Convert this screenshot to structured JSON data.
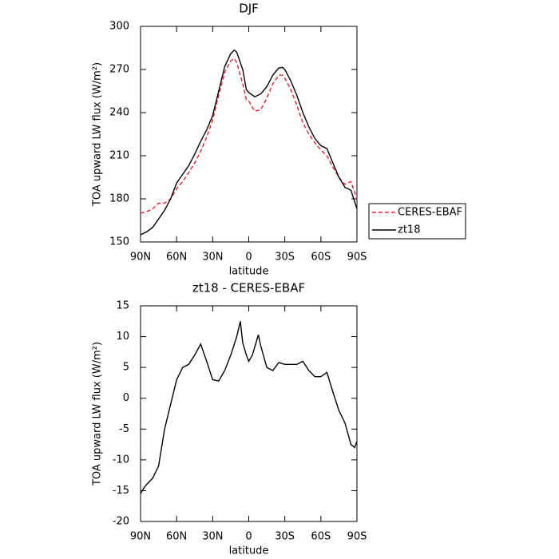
{
  "chart_data": [
    {
      "type": "line",
      "title": "DJF",
      "xlabel": "latitude",
      "ylabel": "TOA upward LW flux (W/m²)",
      "x": [
        90,
        85,
        80,
        75,
        70,
        65,
        60,
        55,
        50,
        45,
        40,
        35,
        30,
        25,
        20,
        15,
        12,
        10,
        5,
        2,
        0,
        -5,
        -10,
        -15,
        -20,
        -25,
        -28,
        -30,
        -35,
        -40,
        -45,
        -50,
        -55,
        -60,
        -65,
        -70,
        -75,
        -80,
        -85,
        -90
      ],
      "series": [
        {
          "name": "CERES-EBAF",
          "color": "#e8202a",
          "dash": true,
          "values": [
            170,
            171,
            173,
            177,
            177,
            180,
            187,
            192,
            198,
            205,
            213,
            223,
            235,
            252,
            268,
            276,
            277.5,
            275,
            260,
            249,
            248,
            241,
            242,
            250,
            260,
            266,
            266,
            264,
            256,
            245,
            233,
            225,
            219,
            214,
            210,
            202,
            195,
            190,
            192,
            180
          ]
        },
        {
          "name": "zt18",
          "color": "#000000",
          "dash": false,
          "values": [
            155,
            157,
            160,
            166,
            172,
            180,
            191,
            197,
            203,
            211,
            220,
            228,
            238,
            255,
            272,
            281,
            283.5,
            282,
            270,
            256,
            254,
            251,
            253,
            258,
            266,
            271,
            271.5,
            270,
            262,
            252,
            240,
            230,
            222,
            217,
            215,
            205,
            195,
            188,
            186,
            173
          ]
        }
      ],
      "xlim": [
        90,
        -90
      ],
      "xticks": [
        {
          "value": 90,
          "label": "90N"
        },
        {
          "value": 60,
          "label": "60N"
        },
        {
          "value": 30,
          "label": "30N"
        },
        0,
        {
          "value": -30,
          "label": "30S"
        },
        {
          "value": -60,
          "label": "60S"
        },
        {
          "value": -90,
          "label": "90S"
        }
      ],
      "ylim": [
        150,
        300
      ],
      "yticks": [
        150,
        180,
        210,
        240,
        270,
        300
      ],
      "legend": "right"
    },
    {
      "type": "line",
      "title": "zt18 - CERES-EBAF",
      "xlabel": "latitude",
      "ylabel": "TOA upward LW flux (W/m²)",
      "x": [
        90,
        87,
        85,
        80,
        75,
        70,
        65,
        60,
        55,
        50,
        45,
        40,
        35,
        30,
        25,
        20,
        15,
        10,
        7,
        5,
        2,
        0,
        -3,
        -8,
        -10,
        -15,
        -20,
        -25,
        -30,
        -35,
        -40,
        -45,
        -50,
        -55,
        -60,
        -65,
        -70,
        -75,
        -80,
        -85,
        -88,
        -90
      ],
      "series": [
        {
          "color": "#000000",
          "dash": false,
          "values": [
            -15.5,
            -14.5,
            -14,
            -13,
            -11,
            -5,
            -1,
            3,
            5,
            5.5,
            7,
            8.8,
            6,
            3,
            2.8,
            4.5,
            7,
            10,
            12.5,
            9,
            7,
            6,
            7,
            10.3,
            8.5,
            5,
            4.5,
            5.8,
            5.5,
            5.5,
            5.5,
            6,
            4.5,
            3.5,
            3.5,
            4.2,
            1,
            -2,
            -4,
            -7.5,
            -8,
            -7
          ]
        }
      ],
      "xlim": [
        90,
        -90
      ],
      "xticks": [
        {
          "value": 90,
          "label": "90N"
        },
        {
          "value": 60,
          "label": "60N"
        },
        {
          "value": 30,
          "label": "30N"
        },
        0,
        {
          "value": -30,
          "label": "30S"
        },
        {
          "value": -60,
          "label": "60S"
        },
        {
          "value": -90,
          "label": "90S"
        }
      ],
      "ylim": [
        -20,
        15
      ],
      "yticks": [
        -20,
        -15,
        -10,
        -5,
        0,
        5,
        10,
        15
      ]
    }
  ]
}
